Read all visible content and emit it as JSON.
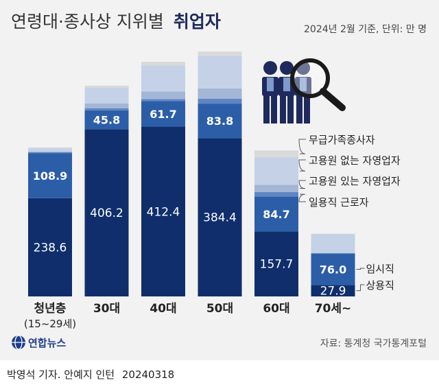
{
  "header": {
    "title_regular": "연령대·종사상 지위별",
    "title_bold": "취업자",
    "note": "2024년 2월 기준, 단위: 만 명"
  },
  "source": "자료: 통계청 국가통계포털",
  "logo": {
    "text": "연합뉴스",
    "icon": "yonhap-globe-icon"
  },
  "illustration": {
    "icon": "workers-magnifier-icon"
  },
  "credit": {
    "byline": "박영석 기자. 안예지 인턴",
    "date": "20240318"
  },
  "colors": {
    "background": "#f2f2f2",
    "regular": "#0f2e6b",
    "temporary": "#2c5ea8",
    "daily": "#5f86c2",
    "self_with": "#a4b6d6",
    "self_without": "#c5d1e7",
    "family": "#d9d9d9"
  },
  "chart_data": {
    "type": "bar",
    "stacked": true,
    "categories": [
      "청년층\n(15~29세)",
      "30대",
      "40대",
      "50대",
      "60대",
      "70세~"
    ],
    "series": [
      {
        "name": "상용직",
        "values": [
          238.6,
          406.2,
          412.4,
          384.4,
          157.7,
          27.9
        ]
      },
      {
        "name": "임시직",
        "values": [
          108.9,
          45.8,
          61.7,
          83.8,
          84.7,
          76.0
        ]
      },
      {
        "name": "일용직 근로자",
        "values": [
          2.5,
          5.2,
          5.1,
          11.9,
          11.3,
          1.2
        ]
      },
      {
        "name": "고용원 있는 자영업자",
        "values": [
          2.1,
          11.7,
          18.7,
          25.2,
          17.1,
          0.6
        ]
      },
      {
        "name": "고용원 없는 자영업자",
        "values": [
          7.5,
          38.4,
          63.2,
          79.1,
          67.4,
          46.4
        ]
      },
      {
        "name": "무급가족종사자",
        "values": [
          2.6,
          4.6,
          8.6,
          10.3,
          16.4,
          0.0
        ]
      }
    ],
    "labeled_series": [
      "상용직",
      "임시직"
    ],
    "ylim": [
      0,
      625
    ],
    "grid": false,
    "legend": "right, callout labels pointing at the 60대 and 70세~ bars"
  }
}
